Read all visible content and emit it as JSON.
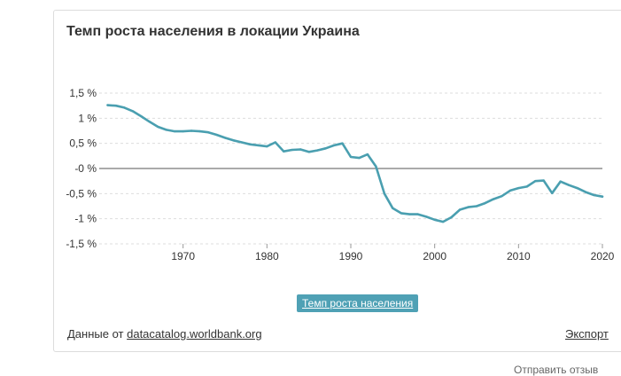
{
  "title": "Темп роста населения в локации Украина",
  "legend_label": "Темп роста населения",
  "source_prefix": "Данные от",
  "source_link": "datacatalog.worldbank.org",
  "export_label": "Экспорт",
  "footer_text": "Отправить отзыв",
  "colors": {
    "line": "#4a9fb0",
    "legend_bg": "#4fa1b5",
    "zero_line": "#555555",
    "grid": "#dddddd"
  },
  "chart_data": {
    "type": "line",
    "title": "Темп роста населения в локации Украина",
    "xlabel": "",
    "ylabel": "",
    "xlim": [
      1960,
      2020
    ],
    "ylim": [
      -1.5,
      1.5
    ],
    "x_ticks": [
      1970,
      1980,
      1990,
      2000,
      2010,
      2020
    ],
    "x_tick_labels": [
      "1970",
      "1980",
      "1990",
      "2000",
      "2010",
      "2020"
    ],
    "y_ticks": [
      1.5,
      1,
      0.5,
      0,
      -0.5,
      -1,
      -1.5
    ],
    "y_tick_labels": [
      "1,5 %",
      "1 %",
      "0,5 %",
      "-0 %",
      "-0,5 %",
      "-1 %",
      "-1,5 %"
    ],
    "grid": true,
    "legend": "bottom",
    "series": [
      {
        "name": "Темп роста населения",
        "x": [
          1961,
          1962,
          1963,
          1964,
          1965,
          1966,
          1967,
          1968,
          1969,
          1970,
          1971,
          1972,
          1973,
          1974,
          1975,
          1976,
          1977,
          1978,
          1979,
          1980,
          1981,
          1982,
          1983,
          1984,
          1985,
          1986,
          1987,
          1988,
          1989,
          1990,
          1991,
          1992,
          1993,
          1994,
          1995,
          1996,
          1997,
          1998,
          1999,
          2000,
          2001,
          2002,
          2003,
          2004,
          2005,
          2006,
          2007,
          2008,
          2009,
          2010,
          2011,
          2012,
          2013,
          2014,
          2015,
          2016,
          2017,
          2018,
          2019,
          2020
        ],
        "values": [
          1.26,
          1.25,
          1.21,
          1.14,
          1.04,
          0.93,
          0.83,
          0.77,
          0.74,
          0.74,
          0.75,
          0.74,
          0.72,
          0.67,
          0.61,
          0.56,
          0.52,
          0.48,
          0.46,
          0.44,
          0.52,
          0.34,
          0.37,
          0.38,
          0.33,
          0.36,
          0.4,
          0.46,
          0.5,
          0.23,
          0.21,
          0.28,
          0.04,
          -0.5,
          -0.79,
          -0.89,
          -0.91,
          -0.91,
          -0.96,
          -1.02,
          -1.06,
          -0.97,
          -0.82,
          -0.77,
          -0.75,
          -0.69,
          -0.61,
          -0.55,
          -0.44,
          -0.39,
          -0.36,
          -0.25,
          -0.24,
          -0.49,
          -0.26,
          -0.33,
          -0.39,
          -0.47,
          -0.53,
          -0.56
        ]
      }
    ]
  }
}
